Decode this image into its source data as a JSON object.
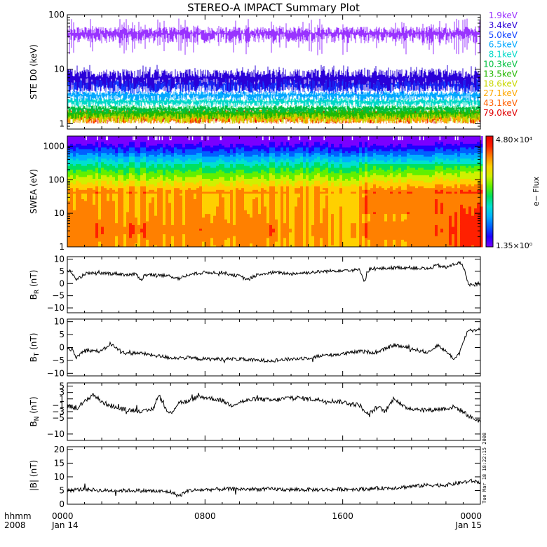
{
  "title": "STEREO-A IMPACT Summary Plot",
  "stamp": "Tue Mar 18 18:22:15 2008",
  "time_axis": {
    "row1": [
      "0000",
      "0800",
      "1600",
      "0000"
    ],
    "row2": [
      "Jan 14",
      "",
      "",
      "Jan 15"
    ],
    "left_label_1": "hhmm",
    "left_label_2": "2008"
  },
  "colorbar": {
    "max_label": "4.80×10⁴",
    "min_label": "1.35×10⁰",
    "title": "e− Flux",
    "colors": [
      "#7a00ff",
      "#2000ff",
      "#0060ff",
      "#00b0ff",
      "#00e0d0",
      "#00e060",
      "#60f000",
      "#d0f000",
      "#ffd000",
      "#ff8000",
      "#ff2000",
      "#e80000"
    ]
  },
  "chart_data": [
    {
      "type": "line",
      "name": "ste",
      "ylabel": "STE D0 (keV)",
      "yscale": "log",
      "ylim": [
        0.8,
        100
      ],
      "yticks": [
        1,
        10,
        100
      ],
      "ytick_labels": [
        "1",
        "10",
        "100"
      ],
      "xlim_hours": [
        0,
        24
      ],
      "series": [
        {
          "name": "1.9keV",
          "color": "#9933ff",
          "band": [
            30,
            60
          ]
        },
        {
          "name": "3.4keV",
          "color": "#2a00d8",
          "band": [
            4,
            10
          ]
        },
        {
          "name": "5.0keV",
          "color": "#1040ff",
          "band": [
            3.5,
            7
          ]
        },
        {
          "name": "6.5keV",
          "color": "#00a8ff",
          "band": [
            2.6,
            4
          ]
        },
        {
          "name": "8.1keV",
          "color": "#00d8c8",
          "band": [
            2.0,
            3.0
          ]
        },
        {
          "name": "10.3keV",
          "color": "#00c040",
          "band": [
            1.5,
            2.2
          ]
        },
        {
          "name": "13.5keV",
          "color": "#22b800",
          "band": [
            1.2,
            1.9
          ]
        },
        {
          "name": "18.6keV",
          "color": "#c8d800",
          "band": [
            1.0,
            1.8
          ]
        },
        {
          "name": "27.1keV",
          "color": "#ffa800",
          "band": [
            1.0,
            1.8
          ]
        },
        {
          "name": "43.1keV",
          "color": "#ff6000",
          "band": [
            1.0,
            1.8
          ]
        },
        {
          "name": "79.0keV",
          "color": "#e00000",
          "band": [
            1.0,
            1.8
          ]
        }
      ]
    },
    {
      "type": "heatmap",
      "name": "swea",
      "ylabel": "SWEA (eV)",
      "yscale": "log",
      "ylim": [
        1,
        2000
      ],
      "yticks": [
        1,
        10,
        100,
        1000
      ],
      "ytick_labels": [
        "1",
        "10",
        "100",
        "1000"
      ],
      "zscale": "log",
      "zlim": [
        1.35,
        48000
      ],
      "xlim_hours": [
        0,
        24
      ]
    },
    {
      "type": "line",
      "name": "br",
      "ylabel": "BR (nT)",
      "ylabel_main": "B",
      "ylabel_sub": "R",
      "ylabel_unit": " (nT)",
      "ylim": [
        -12,
        11
      ],
      "yticks": [
        -10,
        -5,
        0,
        5,
        10
      ],
      "ytick_labels": [
        "−10",
        "−5",
        "0",
        "5",
        "10"
      ],
      "x_hours": [
        0,
        0.3,
        0.5,
        1,
        2,
        3,
        3.5,
        4,
        4.3,
        4.5,
        5,
        6,
        6.5,
        7,
        8,
        9,
        10,
        10.5,
        11,
        12,
        13,
        14,
        15,
        16,
        17,
        17.3,
        17.4,
        17.6,
        18,
        19,
        20,
        21,
        21.5,
        22,
        22.5,
        22.8,
        23,
        23.3,
        23.6,
        24
      ],
      "values": [
        5.5,
        4.5,
        1.0,
        4.0,
        4.2,
        4.0,
        3.5,
        3.8,
        1.5,
        3.5,
        3.5,
        3.0,
        2.0,
        3.5,
        4.5,
        4.5,
        3.0,
        1.5,
        3.5,
        4.5,
        4.0,
        4.5,
        5.0,
        5.5,
        5.5,
        0.5,
        4.5,
        6.0,
        6.0,
        6.5,
        6.5,
        6.0,
        7.5,
        6.5,
        8.0,
        8.5,
        7.0,
        0.0,
        -1.0,
        0.5
      ]
    },
    {
      "type": "line",
      "name": "bt",
      "ylabel": "BT (nT)",
      "ylabel_main": "B",
      "ylabel_sub": "T",
      "ylabel_unit": " (nT)",
      "ylim": [
        -11,
        11
      ],
      "yticks": [
        -10,
        -5,
        0,
        5,
        10
      ],
      "ytick_labels": [
        "−10",
        "−5",
        "0",
        "5",
        "10"
      ],
      "x_hours": [
        0,
        0.3,
        0.5,
        1,
        2,
        2.5,
        3,
        3.5,
        4,
        5,
        6,
        7,
        8,
        9,
        10,
        11,
        12,
        13,
        14,
        15,
        16,
        17,
        18,
        19,
        20,
        21,
        21.5,
        22,
        22.5,
        22.8,
        23,
        23.3,
        23.6,
        24
      ],
      "values": [
        0,
        -1.0,
        -4.0,
        -1.0,
        -1.5,
        1.5,
        -1.0,
        -2.5,
        -2.0,
        -3.0,
        -4.0,
        -4.0,
        -4.5,
        -4.5,
        -4.5,
        -5.0,
        -5.0,
        -4.5,
        -4.0,
        -3.0,
        -2.5,
        -1.5,
        -2.0,
        1.0,
        -0.5,
        -2.0,
        1.0,
        -1.5,
        -4.5,
        -2.0,
        2.0,
        7.0,
        6.5,
        7.5
      ]
    },
    {
      "type": "line",
      "name": "bn",
      "ylabel": "BN (nT)",
      "ylabel_main": "B",
      "ylabel_sub": "N",
      "ylabel_unit": " (nT)",
      "ylim": [
        -12,
        6
      ],
      "yticks": [
        -10,
        -5,
        -3,
        -1,
        1,
        3,
        5
      ],
      "ytick_labels": [
        "−10",
        "−5",
        "−3",
        "−1",
        "1",
        "3",
        "5"
      ],
      "x_hours": [
        0,
        0.5,
        1,
        1.5,
        2,
        2.5,
        3,
        3.5,
        4,
        4.5,
        5,
        5.3,
        5.8,
        6,
        6.5,
        7,
        7.5,
        8,
        8.5,
        9,
        9.5,
        10,
        11,
        12,
        13,
        14,
        15,
        16,
        17,
        17.5,
        18,
        18.5,
        19,
        19.5,
        20,
        21,
        22,
        22.5,
        23,
        23.5,
        24
      ],
      "values": [
        -1.0,
        -2.0,
        0,
        2.5,
        0,
        -1.0,
        -2.0,
        -2.5,
        -2.5,
        -3.0,
        -2.0,
        2.5,
        -3.0,
        -3.5,
        0,
        0,
        1.5,
        1.5,
        1.0,
        0.5,
        -1.0,
        0,
        1.0,
        0.5,
        1.5,
        1.0,
        0.5,
        0,
        -1.0,
        -4.0,
        -1.5,
        -3.0,
        1.5,
        -1.5,
        -2.0,
        -2.5,
        -2.0,
        -1.5,
        -3.0,
        -5.0,
        -6.0
      ]
    },
    {
      "type": "line",
      "name": "bmag",
      "ylabel": "|B| (nT)",
      "ylim": [
        0,
        21
      ],
      "yticks": [
        0,
        5,
        10,
        15,
        20
      ],
      "ytick_labels": [
        "0",
        "5",
        "10",
        "15",
        "20"
      ],
      "x_hours": [
        0,
        1,
        2,
        3,
        4,
        5,
        6,
        6.5,
        7,
        8,
        9,
        10,
        11,
        12,
        13,
        14,
        15,
        16,
        17,
        18,
        19,
        20,
        21,
        22,
        22.5,
        23,
        23.5,
        24
      ],
      "values": [
        5.0,
        5.5,
        5.0,
        5.0,
        5.0,
        4.8,
        4.5,
        3.0,
        5.0,
        5.3,
        5.5,
        5.5,
        5.5,
        5.5,
        5.3,
        5.3,
        5.3,
        5.5,
        5.5,
        5.8,
        6.0,
        6.5,
        7.0,
        7.0,
        7.5,
        8.0,
        8.5,
        8.0
      ]
    }
  ]
}
